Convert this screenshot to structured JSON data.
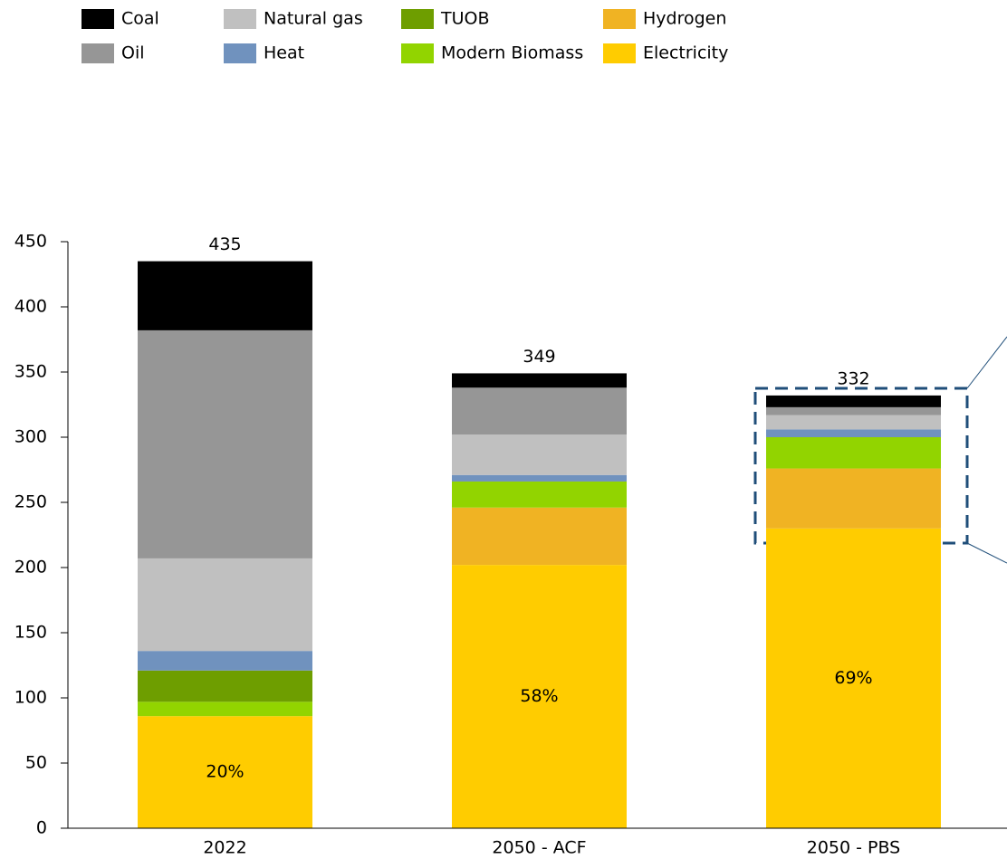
{
  "chart_data": {
    "type": "stacked_bar",
    "categories": [
      "2022",
      "2050 - ACF",
      "2050 - PBS"
    ],
    "series": [
      {
        "name": "Electricity",
        "color": "#ffcc00",
        "values": [
          86,
          202,
          230
        ]
      },
      {
        "name": "Hydrogen",
        "color": "#f0b323",
        "values": [
          0,
          44,
          46
        ]
      },
      {
        "name": "Modern Biomass",
        "color": "#92d400",
        "values": [
          11,
          20,
          24
        ]
      },
      {
        "name": "TUOB",
        "color": "#6e9e00",
        "values": [
          24,
          0,
          0
        ]
      },
      {
        "name": "Heat",
        "color": "#7092be",
        "values": [
          15,
          5,
          6
        ]
      },
      {
        "name": "Natural gas",
        "color": "#c0c0c0",
        "values": [
          71,
          31,
          11
        ]
      },
      {
        "name": "Oil",
        "color": "#969696",
        "values": [
          175,
          36,
          6
        ]
      },
      {
        "name": "Coal",
        "color": "#000000",
        "values": [
          53,
          11,
          9
        ]
      }
    ],
    "totals": [
      435,
      349,
      332
    ],
    "electricity_share": {
      "values": [
        20,
        58,
        69
      ],
      "value_labels": [
        "20%",
        "58%",
        "69%"
      ]
    },
    "ylim": [
      0,
      450
    ],
    "yticks": [
      0,
      50,
      100,
      150,
      200,
      250,
      300,
      350,
      400,
      450
    ]
  }
}
